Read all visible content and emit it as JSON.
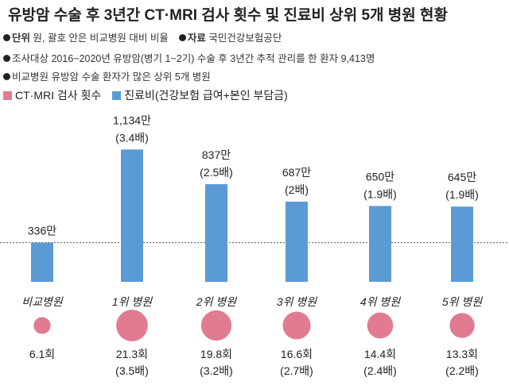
{
  "title": "유방암 수술 후 3년간 CT·MRI 검사 횟수 및 진료비 상위 5개 병원 현황",
  "notes": {
    "unit_label": "단위",
    "unit_text": "원, 괄호 안은 비교병원 대비 비율",
    "source_label": "자료",
    "source_text": "국민건강보험공단",
    "subjects": "조사대상  2016~2020년 유방암(병기 1~2기) 수술 후 3년간 추적 관리를 한 환자 9,413명",
    "comparison": "비교병원  유방암 수술 환자가 많은 상위 5개 병원"
  },
  "colors": {
    "bar": "#5b9bd5",
    "bubble": "#e07b91",
    "text": "#222222"
  },
  "chart_data": {
    "type": "bar",
    "categories": [
      "비교병원",
      "1위 병원",
      "2위 병원",
      "3위 병원",
      "4위 병원",
      "5위 병원"
    ],
    "series": [
      {
        "name": "진료비(건강보험 급여+본인 부담금)",
        "values": [
          336,
          1134,
          837,
          687,
          650,
          645
        ],
        "labels": [
          "336만",
          "1,134만",
          "837만",
          "687만",
          "650만",
          "645만"
        ],
        "ratio_labels": [
          "",
          "(3.4배)",
          "(2.5배)",
          "(2배)",
          "(1.9배)",
          "(1.9배)"
        ]
      },
      {
        "name": "CT·MRI 검사 횟수",
        "values": [
          6.1,
          21.3,
          19.8,
          16.6,
          14.4,
          13.3
        ],
        "labels": [
          "6.1회",
          "21.3회",
          "19.8회",
          "16.6회",
          "14.4회",
          "13.3회"
        ],
        "ratio_labels": [
          "",
          "(3.5배)",
          "(3.2배)",
          "(2.7배)",
          "(2.4배)",
          "(2.2배)"
        ]
      }
    ],
    "reference_line": 336,
    "legend_position": "top-left"
  }
}
